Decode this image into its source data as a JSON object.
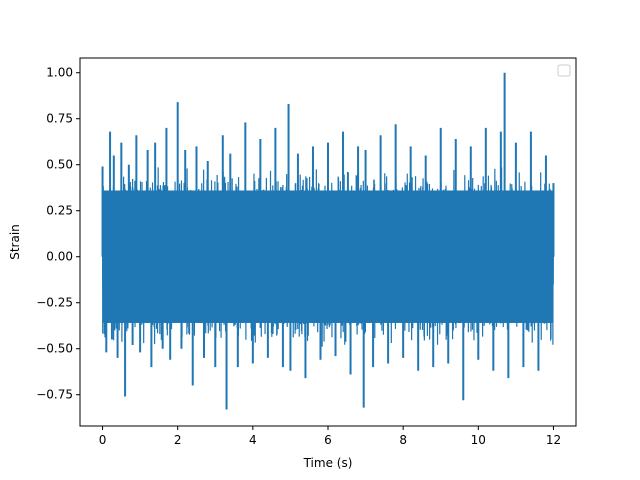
{
  "chart_data": {
    "type": "line",
    "title": "",
    "xlabel": "Time (s)",
    "ylabel": "Strain",
    "xlim": [
      -0.6,
      12.6
    ],
    "ylim": [
      -0.92,
      1.08
    ],
    "xticks": [
      0,
      2,
      4,
      6,
      8,
      10,
      12
    ],
    "xtick_labels": [
      "0",
      "2",
      "4",
      "6",
      "8",
      "10",
      "12"
    ],
    "yticks": [
      -0.75,
      -0.5,
      -0.25,
      0.0,
      0.25,
      0.5,
      0.75,
      1.0
    ],
    "ytick_labels": [
      "−0.75",
      "−0.50",
      "−0.25",
      "0.00",
      "0.25",
      "0.50",
      "0.75",
      "1.00"
    ],
    "grid": false,
    "legend": {
      "placement": "top-right",
      "entries": []
    },
    "series": [
      {
        "color": "#1f77b4",
        "x": [
          0.0,
          0.1,
          0.2,
          0.25,
          0.3,
          0.4,
          0.5,
          0.6,
          0.7,
          0.8,
          0.9,
          1.0,
          1.2,
          1.3,
          1.4,
          1.6,
          1.7,
          1.8,
          2.0,
          2.1,
          2.2,
          2.4,
          2.5,
          2.7,
          2.8,
          3.0,
          3.2,
          3.3,
          3.4,
          3.6,
          3.8,
          4.0,
          4.2,
          4.4,
          4.6,
          4.8,
          4.95,
          5.0,
          5.2,
          5.4,
          5.6,
          5.8,
          6.0,
          6.2,
          6.4,
          6.6,
          6.8,
          6.95,
          7.0,
          7.2,
          7.4,
          7.6,
          7.8,
          8.0,
          8.2,
          8.4,
          8.6,
          8.8,
          9.0,
          9.2,
          9.4,
          9.6,
          9.8,
          10.0,
          10.2,
          10.4,
          10.6,
          10.7,
          10.8,
          11.0,
          11.2,
          11.4,
          11.6,
          11.8,
          12.0
        ],
        "y": [
          0.49,
          -0.52,
          0.68,
          -0.45,
          0.55,
          -0.55,
          0.62,
          -0.76,
          0.5,
          -0.48,
          0.66,
          -0.52,
          0.58,
          -0.6,
          0.62,
          -0.5,
          0.7,
          -0.56,
          0.84,
          -0.5,
          0.58,
          -0.7,
          0.6,
          -0.55,
          0.52,
          -0.6,
          0.66,
          -0.83,
          0.56,
          -0.6,
          0.73,
          -0.58,
          0.64,
          -0.55,
          0.7,
          -0.6,
          0.83,
          -0.62,
          0.56,
          -0.66,
          0.6,
          -0.56,
          0.62,
          -0.54,
          0.68,
          -0.64,
          0.6,
          -0.82,
          0.58,
          -0.6,
          0.66,
          -0.58,
          0.72,
          -0.55,
          0.6,
          -0.62,
          0.55,
          -0.6,
          0.7,
          -0.58,
          0.64,
          -0.78,
          0.6,
          -0.56,
          0.7,
          -0.62,
          0.68,
          1.0,
          -0.66,
          0.62,
          -0.6,
          0.68,
          -0.62,
          0.55,
          0.4
        ]
      }
    ]
  }
}
